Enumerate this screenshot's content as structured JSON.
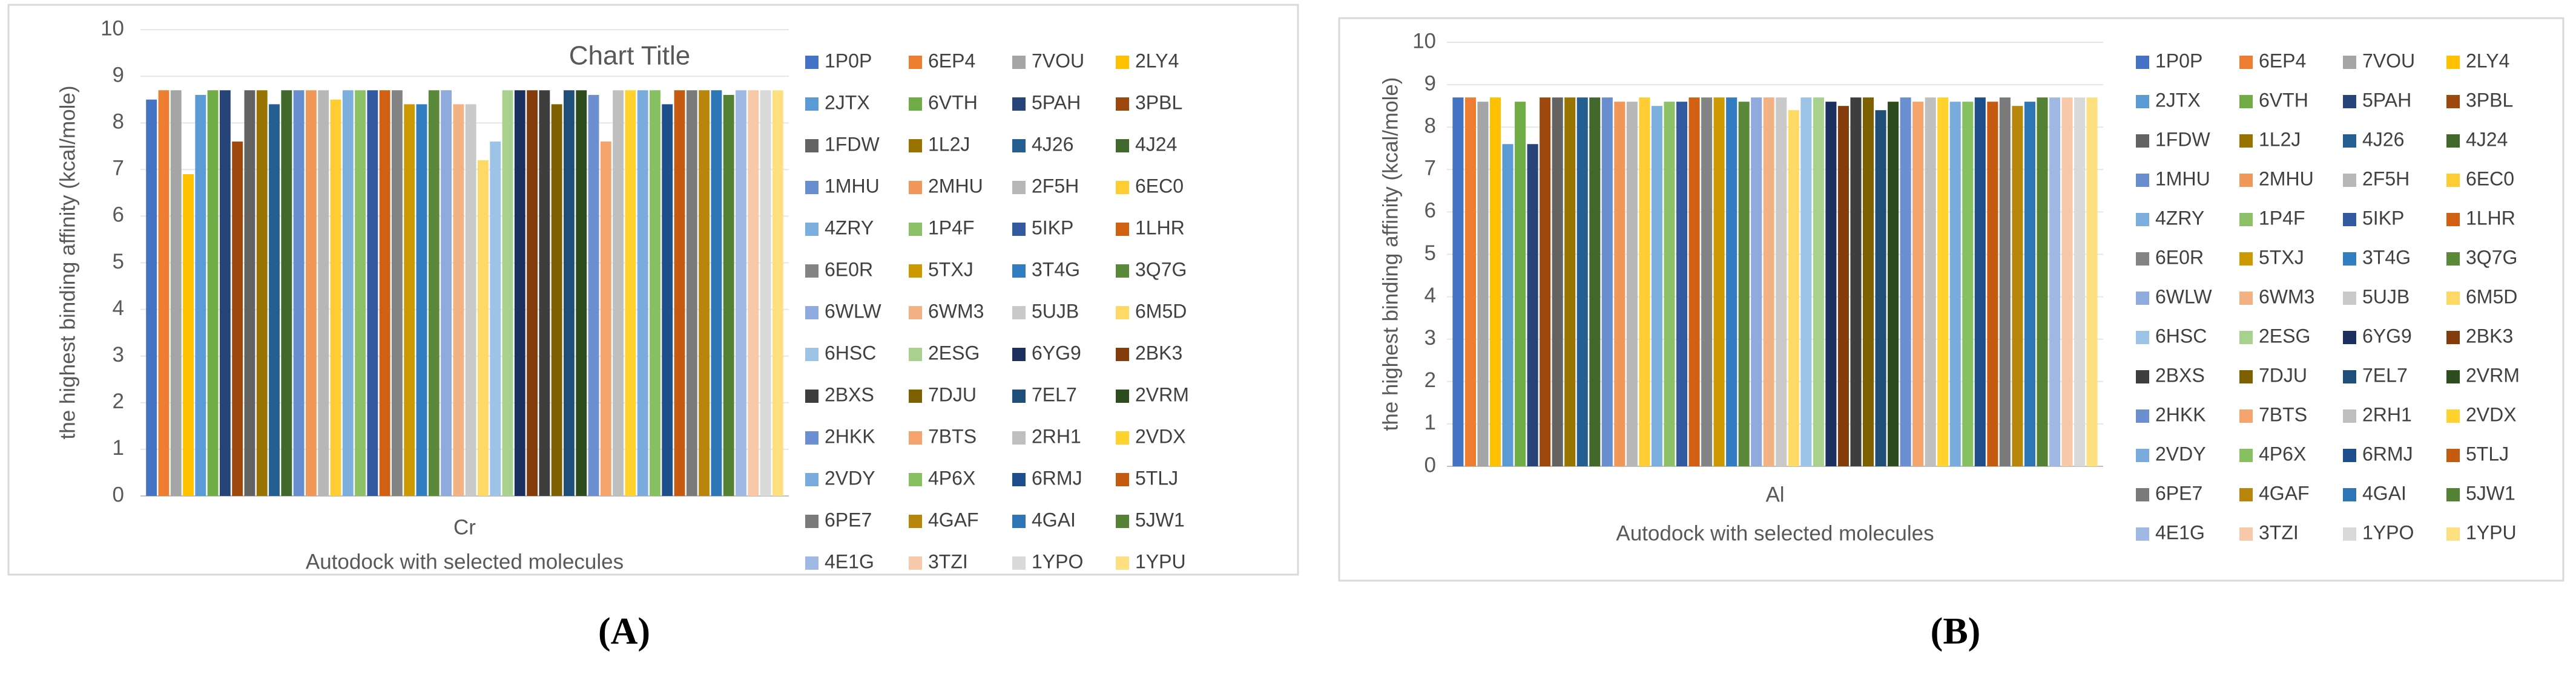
{
  "chart_data": [
    {
      "type": "bar",
      "title": "Chart Title",
      "panel_label": "(A)",
      "y_label": "the highest binding affinity (kcal/mole)",
      "x_label": "Autodock with selected molecules",
      "categories": [
        "Cr"
      ],
      "ylim": [
        0,
        10
      ],
      "yticks": [
        0,
        1,
        2,
        3,
        4,
        5,
        6,
        7,
        8,
        9,
        10
      ],
      "grid": true,
      "series": [
        {
          "name": "1P0P",
          "color": "#4472c4",
          "values": [
            8.5
          ]
        },
        {
          "name": "6EP4",
          "color": "#ed7d31",
          "values": [
            8.7
          ]
        },
        {
          "name": "7VOU",
          "color": "#a5a5a5",
          "values": [
            8.7
          ]
        },
        {
          "name": "2LY4",
          "color": "#ffc000",
          "values": [
            6.9
          ]
        },
        {
          "name": "2JTX",
          "color": "#5b9bd5",
          "values": [
            8.6
          ]
        },
        {
          "name": "6VTH",
          "color": "#70ad47",
          "values": [
            8.7
          ]
        },
        {
          "name": "5PAH",
          "color": "#264478",
          "values": [
            8.7
          ]
        },
        {
          "name": "3PBL",
          "color": "#9e480e",
          "values": [
            7.6
          ]
        },
        {
          "name": "1FDW",
          "color": "#636363",
          "values": [
            8.7
          ]
        },
        {
          "name": "1L2J",
          "color": "#997300",
          "values": [
            8.7
          ]
        },
        {
          "name": "4J26",
          "color": "#255e91",
          "values": [
            8.4
          ]
        },
        {
          "name": "4J24",
          "color": "#43682b",
          "values": [
            8.7
          ]
        },
        {
          "name": "1MHU",
          "color": "#698ed0",
          "values": [
            8.7
          ]
        },
        {
          "name": "2MHU",
          "color": "#f1975a",
          "values": [
            8.7
          ]
        },
        {
          "name": "2F5H",
          "color": "#b7b7b7",
          "values": [
            8.7
          ]
        },
        {
          "name": "6EC0",
          "color": "#ffcd33",
          "values": [
            8.5
          ]
        },
        {
          "name": "4ZRY",
          "color": "#7cafdd",
          "values": [
            8.7
          ]
        },
        {
          "name": "1P4F",
          "color": "#8cc168",
          "values": [
            8.7
          ]
        },
        {
          "name": "5IKP",
          "color": "#335aa1",
          "values": [
            8.7
          ]
        },
        {
          "name": "1LHR",
          "color": "#d26012",
          "values": [
            8.7
          ]
        },
        {
          "name": "6E0R",
          "color": "#848484",
          "values": [
            8.7
          ]
        },
        {
          "name": "5TXJ",
          "color": "#cc9a00",
          "values": [
            8.4
          ]
        },
        {
          "name": "3T4G",
          "color": "#327dc2",
          "values": [
            8.4
          ]
        },
        {
          "name": "3Q7G",
          "color": "#5a8a39",
          "values": [
            8.7
          ]
        },
        {
          "name": "6WLW",
          "color": "#8faadc",
          "values": [
            8.7
          ]
        },
        {
          "name": "6WM3",
          "color": "#f4b183",
          "values": [
            8.4
          ]
        },
        {
          "name": "5UJB",
          "color": "#c9c9c9",
          "values": [
            8.4
          ]
        },
        {
          "name": "6M5D",
          "color": "#ffd966",
          "values": [
            7.2
          ]
        },
        {
          "name": "6HSC",
          "color": "#9dc3e6",
          "values": [
            7.6
          ]
        },
        {
          "name": "2ESG",
          "color": "#a9d18e",
          "values": [
            8.7
          ]
        },
        {
          "name": "6YG9",
          "color": "#1c3060",
          "values": [
            8.7
          ]
        },
        {
          "name": "2BK3",
          "color": "#843c0c",
          "values": [
            8.7
          ]
        },
        {
          "name": "2BXS",
          "color": "#3e3e3e",
          "values": [
            8.7
          ]
        },
        {
          "name": "7DJU",
          "color": "#7f6000",
          "values": [
            8.4
          ]
        },
        {
          "name": "7EL7",
          "color": "#1f4e79",
          "values": [
            8.7
          ]
        },
        {
          "name": "2VRM",
          "color": "#2d4d1e",
          "values": [
            8.7
          ]
        },
        {
          "name": "2HKK",
          "color": "#6b8fd0",
          "values": [
            8.6
          ]
        },
        {
          "name": "7BTS",
          "color": "#f4a46c",
          "values": [
            7.6
          ]
        },
        {
          "name": "2RH1",
          "color": "#bfbfbf",
          "values": [
            8.7
          ]
        },
        {
          "name": "2VDX",
          "color": "#ffd22e",
          "values": [
            8.7
          ]
        },
        {
          "name": "2VDY",
          "color": "#79acdc",
          "values": [
            8.7
          ]
        },
        {
          "name": "4P6X",
          "color": "#87c060",
          "values": [
            8.7
          ]
        },
        {
          "name": "6RMJ",
          "color": "#1f4e8c",
          "values": [
            8.4
          ]
        },
        {
          "name": "5TLJ",
          "color": "#c55a11",
          "values": [
            8.7
          ]
        },
        {
          "name": "6PE7",
          "color": "#7a7a7a",
          "values": [
            8.7
          ]
        },
        {
          "name": "4GAF",
          "color": "#b8860b",
          "values": [
            8.7
          ]
        },
        {
          "name": "4GAI",
          "color": "#2e75b6",
          "values": [
            8.7
          ]
        },
        {
          "name": "5JW1",
          "color": "#548235",
          "values": [
            8.6
          ]
        },
        {
          "name": "4E1G",
          "color": "#a0b8e4",
          "values": [
            8.7
          ]
        },
        {
          "name": "3TZI",
          "color": "#f8c9a8",
          "values": [
            8.7
          ]
        },
        {
          "name": "1YPO",
          "color": "#d9d9d9",
          "values": [
            8.7
          ]
        },
        {
          "name": "1YPU",
          "color": "#ffe080",
          "values": [
            8.7
          ]
        }
      ]
    },
    {
      "type": "bar",
      "panel_label": "(B)",
      "y_label": "the highest binding affinity (kcal/mole)",
      "x_label": "Autodock with selected molecules",
      "categories": [
        "Al"
      ],
      "ylim": [
        0,
        10
      ],
      "yticks": [
        0,
        1,
        2,
        3,
        4,
        5,
        6,
        7,
        8,
        9,
        10
      ],
      "grid": true,
      "series": [
        {
          "name": "1P0P",
          "color": "#4472c4",
          "values": [
            8.7
          ]
        },
        {
          "name": "6EP4",
          "color": "#ed7d31",
          "values": [
            8.7
          ]
        },
        {
          "name": "7VOU",
          "color": "#a5a5a5",
          "values": [
            8.6
          ]
        },
        {
          "name": "2LY4",
          "color": "#ffc000",
          "values": [
            8.7
          ]
        },
        {
          "name": "2JTX",
          "color": "#5b9bd5",
          "values": [
            7.6
          ]
        },
        {
          "name": "6VTH",
          "color": "#70ad47",
          "values": [
            8.6
          ]
        },
        {
          "name": "5PAH",
          "color": "#264478",
          "values": [
            7.6
          ]
        },
        {
          "name": "3PBL",
          "color": "#9e480e",
          "values": [
            8.7
          ]
        },
        {
          "name": "1FDW",
          "color": "#636363",
          "values": [
            8.7
          ]
        },
        {
          "name": "1L2J",
          "color": "#997300",
          "values": [
            8.7
          ]
        },
        {
          "name": "4J26",
          "color": "#255e91",
          "values": [
            8.7
          ]
        },
        {
          "name": "4J24",
          "color": "#43682b",
          "values": [
            8.7
          ]
        },
        {
          "name": "1MHU",
          "color": "#698ed0",
          "values": [
            8.7
          ]
        },
        {
          "name": "2MHU",
          "color": "#f1975a",
          "values": [
            8.6
          ]
        },
        {
          "name": "2F5H",
          "color": "#b7b7b7",
          "values": [
            8.6
          ]
        },
        {
          "name": "6EC0",
          "color": "#ffcd33",
          "values": [
            8.7
          ]
        },
        {
          "name": "4ZRY",
          "color": "#7cafdd",
          "values": [
            8.5
          ]
        },
        {
          "name": "1P4F",
          "color": "#8cc168",
          "values": [
            8.6
          ]
        },
        {
          "name": "5IKP",
          "color": "#335aa1",
          "values": [
            8.6
          ]
        },
        {
          "name": "1LHR",
          "color": "#d26012",
          "values": [
            8.7
          ]
        },
        {
          "name": "6E0R",
          "color": "#848484",
          "values": [
            8.7
          ]
        },
        {
          "name": "5TXJ",
          "color": "#cc9a00",
          "values": [
            8.7
          ]
        },
        {
          "name": "3T4G",
          "color": "#327dc2",
          "values": [
            8.7
          ]
        },
        {
          "name": "3Q7G",
          "color": "#5a8a39",
          "values": [
            8.6
          ]
        },
        {
          "name": "6WLW",
          "color": "#8faadc",
          "values": [
            8.7
          ]
        },
        {
          "name": "6WM3",
          "color": "#f4b183",
          "values": [
            8.7
          ]
        },
        {
          "name": "5UJB",
          "color": "#c9c9c9",
          "values": [
            8.7
          ]
        },
        {
          "name": "6M5D",
          "color": "#ffd966",
          "values": [
            8.4
          ]
        },
        {
          "name": "6HSC",
          "color": "#9dc3e6",
          "values": [
            8.7
          ]
        },
        {
          "name": "2ESG",
          "color": "#a9d18e",
          "values": [
            8.7
          ]
        },
        {
          "name": "6YG9",
          "color": "#1c3060",
          "values": [
            8.6
          ]
        },
        {
          "name": "2BK3",
          "color": "#843c0c",
          "values": [
            8.5
          ]
        },
        {
          "name": "2BXS",
          "color": "#3e3e3e",
          "values": [
            8.7
          ]
        },
        {
          "name": "7DJU",
          "color": "#7f6000",
          "values": [
            8.7
          ]
        },
        {
          "name": "7EL7",
          "color": "#1f4e79",
          "values": [
            8.4
          ]
        },
        {
          "name": "2VRM",
          "color": "#2d4d1e",
          "values": [
            8.6
          ]
        },
        {
          "name": "2HKK",
          "color": "#6b8fd0",
          "values": [
            8.7
          ]
        },
        {
          "name": "7BTS",
          "color": "#f4a46c",
          "values": [
            8.6
          ]
        },
        {
          "name": "2RH1",
          "color": "#bfbfbf",
          "values": [
            8.7
          ]
        },
        {
          "name": "2VDX",
          "color": "#ffd22e",
          "values": [
            8.7
          ]
        },
        {
          "name": "2VDY",
          "color": "#79acdc",
          "values": [
            8.6
          ]
        },
        {
          "name": "4P6X",
          "color": "#87c060",
          "values": [
            8.6
          ]
        },
        {
          "name": "6RMJ",
          "color": "#1f4e8c",
          "values": [
            8.7
          ]
        },
        {
          "name": "5TLJ",
          "color": "#c55a11",
          "values": [
            8.6
          ]
        },
        {
          "name": "6PE7",
          "color": "#7a7a7a",
          "values": [
            8.7
          ]
        },
        {
          "name": "4GAF",
          "color": "#b8860b",
          "values": [
            8.5
          ]
        },
        {
          "name": "4GAI",
          "color": "#2e75b6",
          "values": [
            8.6
          ]
        },
        {
          "name": "5JW1",
          "color": "#548235",
          "values": [
            8.7
          ]
        },
        {
          "name": "4E1G",
          "color": "#a0b8e4",
          "values": [
            8.7
          ]
        },
        {
          "name": "3TZI",
          "color": "#f8c9a8",
          "values": [
            8.7
          ]
        },
        {
          "name": "1YPO",
          "color": "#d9d9d9",
          "values": [
            8.7
          ]
        },
        {
          "name": "1YPU",
          "color": "#ffe080",
          "values": [
            8.7
          ]
        }
      ]
    }
  ]
}
